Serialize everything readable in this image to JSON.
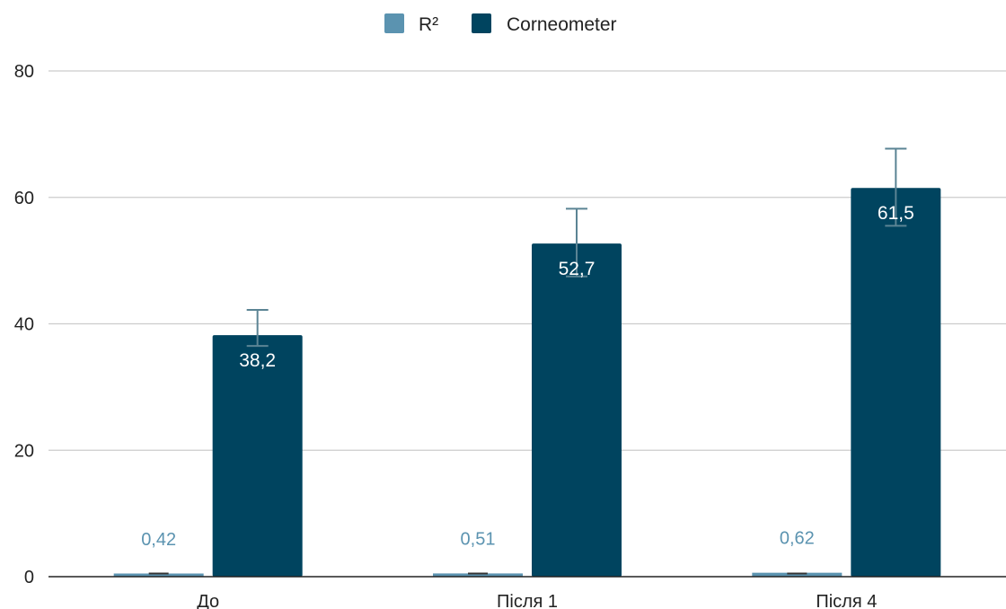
{
  "chart_data": {
    "type": "bar",
    "categories": [
      "До",
      "Після 1",
      "Після 4"
    ],
    "series": [
      {
        "name": "R²",
        "values": [
          0.42,
          0.51,
          0.62
        ],
        "labels": [
          "0,42",
          "0,51",
          "0,62"
        ],
        "color": "#5b93b0",
        "error": [
          0.1,
          0.1,
          0.1
        ]
      },
      {
        "name": "Corneometer",
        "values": [
          38.2,
          52.7,
          61.5
        ],
        "labels": [
          "38,2",
          "52,7",
          "61,5"
        ],
        "color": "#00445f",
        "error_low": [
          36.5,
          47.5,
          55.5
        ],
        "error_high": [
          42.2,
          58.2,
          67.7
        ]
      }
    ],
    "ylim": [
      0,
      80
    ],
    "yticks": [
      "0",
      "20",
      "40",
      "60",
      "80"
    ],
    "grid": true,
    "legend_position": "top",
    "axis_color": "#222222",
    "grid_color": "#cccccc",
    "errorbar_color": "#5b8494"
  }
}
